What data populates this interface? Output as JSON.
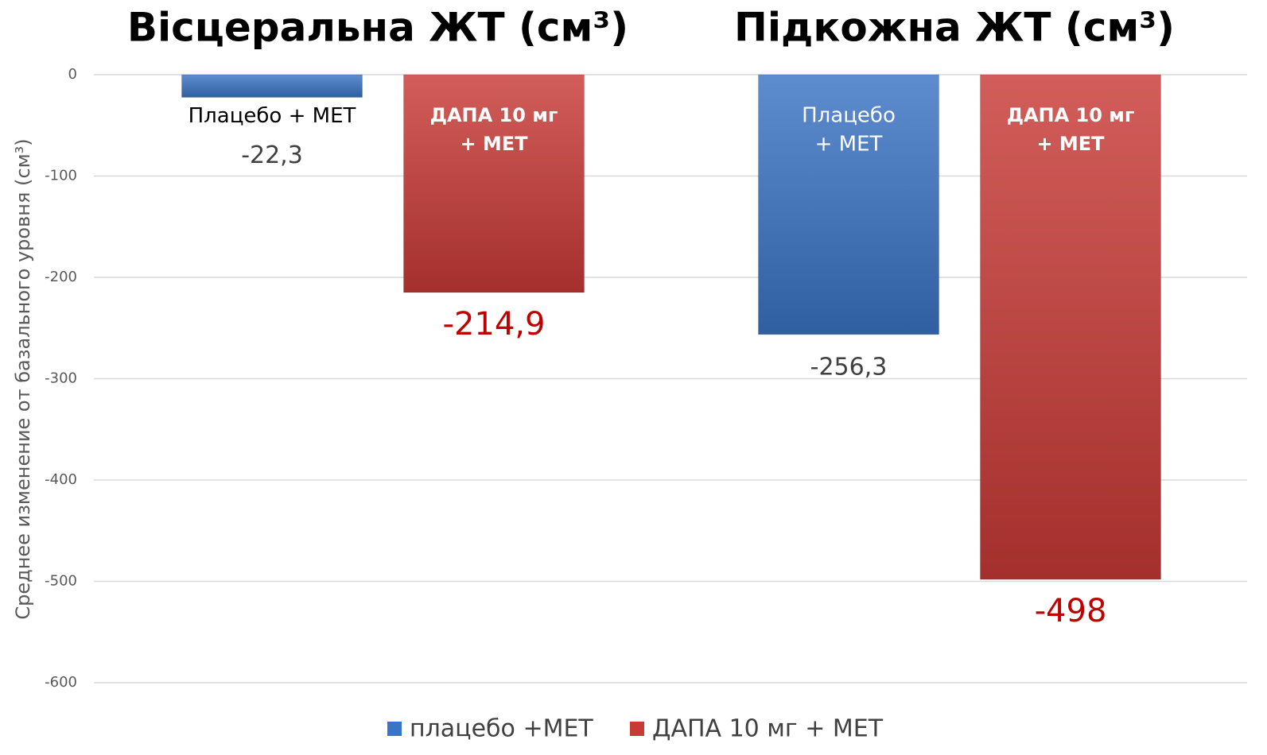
{
  "chart_data": {
    "type": "bar",
    "categories": [
      "Вісцеральна ЖТ (см³)",
      "Підкожна ЖТ (см³)"
    ],
    "ylabel": "Среднее изменение от базального уровня (см³)",
    "ylim": [
      -600,
      0
    ],
    "yticks": [
      0,
      -100,
      -200,
      -300,
      -400,
      -500,
      -600
    ],
    "grid": true,
    "legend": "bottom",
    "series": [
      {
        "name": "плацебо +МЕТ",
        "color": "#3a74c4",
        "label_color": "#404040",
        "values": [
          -22.3,
          -256.3
        ],
        "value_labels": [
          "-22,3",
          "-256,3"
        ],
        "bar_labels": [
          [
            "Плацебо + МЕТ"
          ],
          [
            "Плацебо",
            "+ МЕТ"
          ]
        ]
      },
      {
        "name": "ДАПА 10 мг + МЕТ",
        "color": "#c83a36",
        "label_color": "#c00000",
        "values": [
          -214.9,
          -498
        ],
        "value_labels": [
          "-214,9",
          "-498"
        ],
        "bar_labels": [
          [
            "ДАПА 10 мг",
            "+ МЕТ"
          ],
          [
            "ДАПА 10 мг",
            "+ МЕТ"
          ]
        ]
      }
    ]
  }
}
